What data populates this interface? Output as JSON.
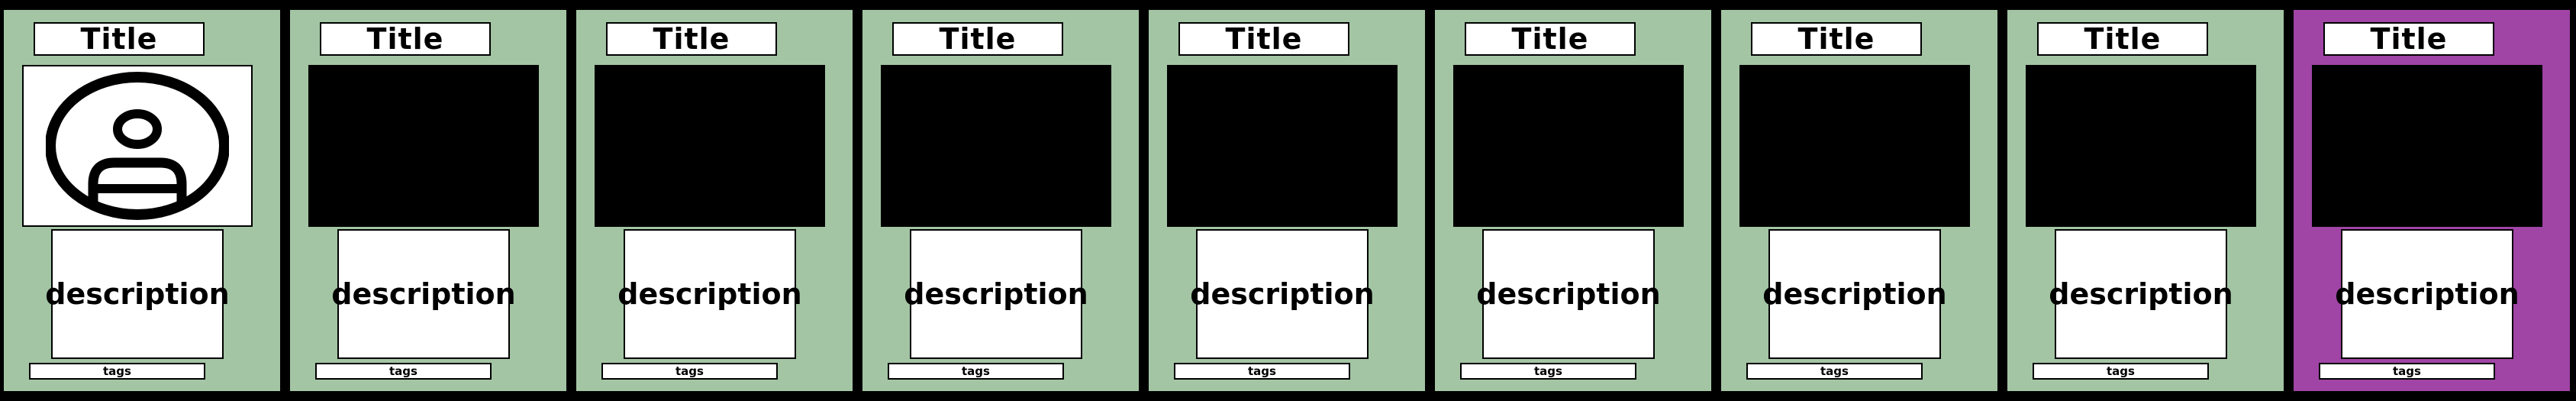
{
  "cards": [
    {
      "title": "Title",
      "description": "description",
      "tags": "tags",
      "image": "user-avatar-icon",
      "background": "#a3c5a4"
    },
    {
      "title": "Title",
      "description": "description",
      "tags": "tags",
      "image": "placeholder-black",
      "background": "#a3c5a4"
    },
    {
      "title": "Title",
      "description": "description",
      "tags": "tags",
      "image": "placeholder-black",
      "background": "#a3c5a4"
    },
    {
      "title": "Title",
      "description": "description",
      "tags": "tags",
      "image": "placeholder-black",
      "background": "#a3c5a4"
    },
    {
      "title": "Title",
      "description": "description",
      "tags": "tags",
      "image": "placeholder-black",
      "background": "#a3c5a4"
    },
    {
      "title": "Title",
      "description": "description",
      "tags": "tags",
      "image": "placeholder-black",
      "background": "#a3c5a4"
    },
    {
      "title": "Title",
      "description": "description",
      "tags": "tags",
      "image": "placeholder-black",
      "background": "#a3c5a4"
    },
    {
      "title": "Title",
      "description": "description",
      "tags": "tags",
      "image": "placeholder-black",
      "background": "#a3c5a4"
    },
    {
      "title": "Title",
      "description": "description",
      "tags": "tags",
      "image": "placeholder-black",
      "background": "#a044a6",
      "selected": true
    }
  ],
  "colors": {
    "page_background": "#000000",
    "card_default": "#a3c5a4",
    "card_selected": "#a044a6",
    "panel": "#ffffff",
    "border": "#000000"
  }
}
